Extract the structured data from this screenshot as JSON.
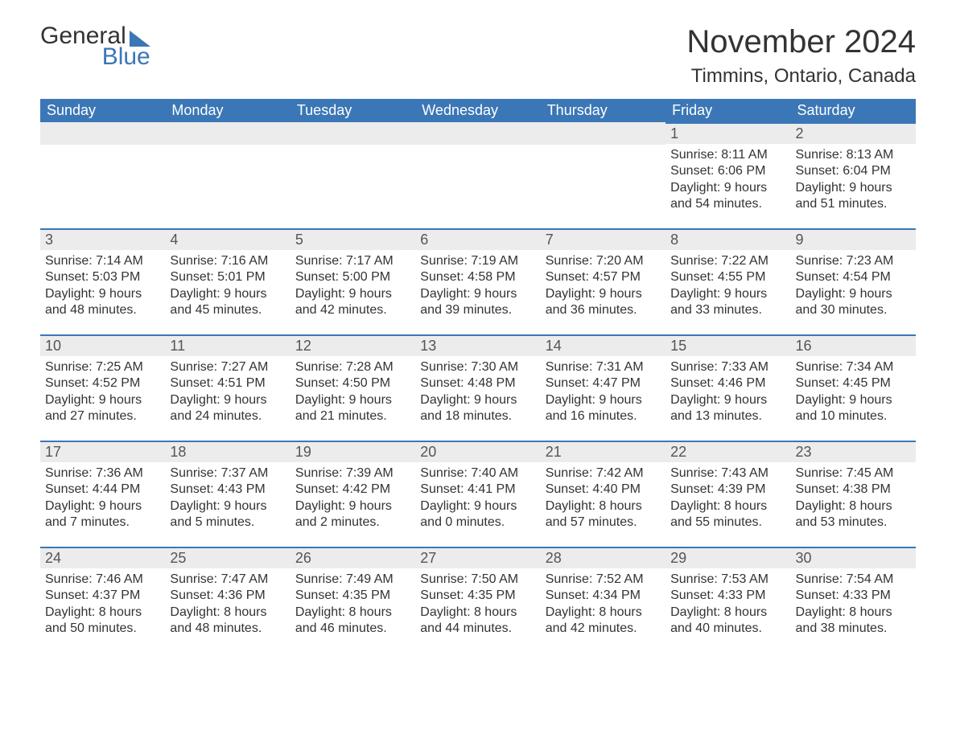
{
  "brand": {
    "word1": "General",
    "word2": "Blue",
    "accent_color": "#3b77b6"
  },
  "title": "November 2024",
  "location": "Timmins, Ontario, Canada",
  "colors": {
    "header_bg": "#3b77b6",
    "header_text": "#ffffff",
    "daynum_bg": "#ececec",
    "daynum_border": "#3b77b6",
    "body_text": "#333333",
    "page_bg": "#ffffff"
  },
  "typography": {
    "title_fontsize": 40,
    "location_fontsize": 24,
    "header_fontsize": 18,
    "body_fontsize": 16
  },
  "weekdays": [
    "Sunday",
    "Monday",
    "Tuesday",
    "Wednesday",
    "Thursday",
    "Friday",
    "Saturday"
  ],
  "leading_blanks": 5,
  "days": [
    {
      "n": 1,
      "sunrise": "8:11 AM",
      "sunset": "6:06 PM",
      "daylight": "9 hours and 54 minutes."
    },
    {
      "n": 2,
      "sunrise": "8:13 AM",
      "sunset": "6:04 PM",
      "daylight": "9 hours and 51 minutes."
    },
    {
      "n": 3,
      "sunrise": "7:14 AM",
      "sunset": "5:03 PM",
      "daylight": "9 hours and 48 minutes."
    },
    {
      "n": 4,
      "sunrise": "7:16 AM",
      "sunset": "5:01 PM",
      "daylight": "9 hours and 45 minutes."
    },
    {
      "n": 5,
      "sunrise": "7:17 AM",
      "sunset": "5:00 PM",
      "daylight": "9 hours and 42 minutes."
    },
    {
      "n": 6,
      "sunrise": "7:19 AM",
      "sunset": "4:58 PM",
      "daylight": "9 hours and 39 minutes."
    },
    {
      "n": 7,
      "sunrise": "7:20 AM",
      "sunset": "4:57 PM",
      "daylight": "9 hours and 36 minutes."
    },
    {
      "n": 8,
      "sunrise": "7:22 AM",
      "sunset": "4:55 PM",
      "daylight": "9 hours and 33 minutes."
    },
    {
      "n": 9,
      "sunrise": "7:23 AM",
      "sunset": "4:54 PM",
      "daylight": "9 hours and 30 minutes."
    },
    {
      "n": 10,
      "sunrise": "7:25 AM",
      "sunset": "4:52 PM",
      "daylight": "9 hours and 27 minutes."
    },
    {
      "n": 11,
      "sunrise": "7:27 AM",
      "sunset": "4:51 PM",
      "daylight": "9 hours and 24 minutes."
    },
    {
      "n": 12,
      "sunrise": "7:28 AM",
      "sunset": "4:50 PM",
      "daylight": "9 hours and 21 minutes."
    },
    {
      "n": 13,
      "sunrise": "7:30 AM",
      "sunset": "4:48 PM",
      "daylight": "9 hours and 18 minutes."
    },
    {
      "n": 14,
      "sunrise": "7:31 AM",
      "sunset": "4:47 PM",
      "daylight": "9 hours and 16 minutes."
    },
    {
      "n": 15,
      "sunrise": "7:33 AM",
      "sunset": "4:46 PM",
      "daylight": "9 hours and 13 minutes."
    },
    {
      "n": 16,
      "sunrise": "7:34 AM",
      "sunset": "4:45 PM",
      "daylight": "9 hours and 10 minutes."
    },
    {
      "n": 17,
      "sunrise": "7:36 AM",
      "sunset": "4:44 PM",
      "daylight": "9 hours and 7 minutes."
    },
    {
      "n": 18,
      "sunrise": "7:37 AM",
      "sunset": "4:43 PM",
      "daylight": "9 hours and 5 minutes."
    },
    {
      "n": 19,
      "sunrise": "7:39 AM",
      "sunset": "4:42 PM",
      "daylight": "9 hours and 2 minutes."
    },
    {
      "n": 20,
      "sunrise": "7:40 AM",
      "sunset": "4:41 PM",
      "daylight": "9 hours and 0 minutes."
    },
    {
      "n": 21,
      "sunrise": "7:42 AM",
      "sunset": "4:40 PM",
      "daylight": "8 hours and 57 minutes."
    },
    {
      "n": 22,
      "sunrise": "7:43 AM",
      "sunset": "4:39 PM",
      "daylight": "8 hours and 55 minutes."
    },
    {
      "n": 23,
      "sunrise": "7:45 AM",
      "sunset": "4:38 PM",
      "daylight": "8 hours and 53 minutes."
    },
    {
      "n": 24,
      "sunrise": "7:46 AM",
      "sunset": "4:37 PM",
      "daylight": "8 hours and 50 minutes."
    },
    {
      "n": 25,
      "sunrise": "7:47 AM",
      "sunset": "4:36 PM",
      "daylight": "8 hours and 48 minutes."
    },
    {
      "n": 26,
      "sunrise": "7:49 AM",
      "sunset": "4:35 PM",
      "daylight": "8 hours and 46 minutes."
    },
    {
      "n": 27,
      "sunrise": "7:50 AM",
      "sunset": "4:35 PM",
      "daylight": "8 hours and 44 minutes."
    },
    {
      "n": 28,
      "sunrise": "7:52 AM",
      "sunset": "4:34 PM",
      "daylight": "8 hours and 42 minutes."
    },
    {
      "n": 29,
      "sunrise": "7:53 AM",
      "sunset": "4:33 PM",
      "daylight": "8 hours and 40 minutes."
    },
    {
      "n": 30,
      "sunrise": "7:54 AM",
      "sunset": "4:33 PM",
      "daylight": "8 hours and 38 minutes."
    }
  ],
  "labels": {
    "sunrise": "Sunrise:",
    "sunset": "Sunset:",
    "daylight": "Daylight:"
  }
}
